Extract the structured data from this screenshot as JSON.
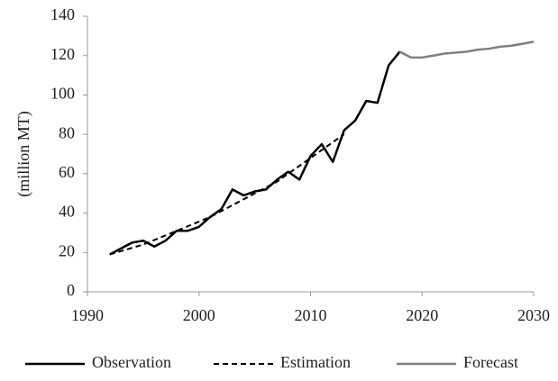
{
  "chart_data": {
    "type": "line",
    "y_label": "(million MT)",
    "xlim": [
      1990,
      2030
    ],
    "xticks": [
      1990,
      2000,
      2010,
      2020,
      2030
    ],
    "ylim": [
      0,
      140
    ],
    "yticks": [
      0,
      20,
      40,
      60,
      80,
      100,
      120,
      140
    ],
    "grid": false,
    "legend": "bottom",
    "series": [
      {
        "name": "Observation",
        "color": "#000000",
        "dash": false,
        "x": [
          1992,
          1993,
          1994,
          1995,
          1996,
          1997,
          1998,
          1999,
          2000,
          2001,
          2002,
          2003,
          2004,
          2005,
          2006,
          2007,
          2008,
          2009,
          2010,
          2011,
          2012,
          2013,
          2014,
          2015,
          2016,
          2017,
          2018
        ],
        "values": [
          19,
          22,
          25,
          26,
          23,
          26,
          31,
          31,
          33,
          38,
          42,
          52,
          49,
          51,
          52,
          57,
          61,
          57,
          69,
          75,
          66,
          82,
          87,
          97,
          96,
          115,
          122
        ]
      },
      {
        "name": "Estimation",
        "color": "#000000",
        "dash": true,
        "x": [
          1992,
          1995,
          1998,
          2001,
          2004,
          2007,
          2010,
          2013
        ],
        "values": [
          19,
          24,
          31,
          38,
          47,
          56,
          68,
          80
        ]
      },
      {
        "name": "Forecast",
        "color": "#808080",
        "dash": false,
        "x": [
          2018,
          2019,
          2020,
          2021,
          2022,
          2023,
          2024,
          2025,
          2026,
          2027,
          2028,
          2029,
          2030
        ],
        "values": [
          122,
          119,
          119,
          120,
          121,
          121.5,
          122,
          123,
          123.5,
          124.5,
          125,
          126,
          127
        ]
      }
    ]
  }
}
